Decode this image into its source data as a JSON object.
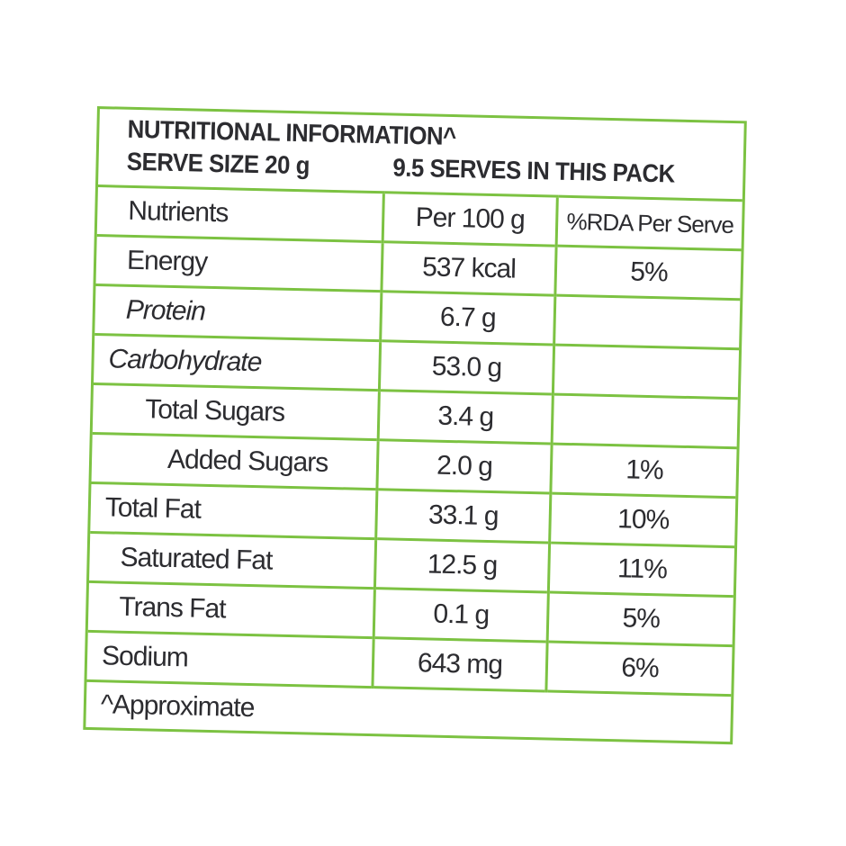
{
  "header": {
    "title": "NUTRITIONAL INFORMATION^",
    "serve_size": "SERVE SIZE 20 g",
    "serves_per_pack": "9.5 SERVES IN THIS PACK"
  },
  "table": {
    "columns": [
      "Nutrients",
      "Per 100 g",
      "%RDA Per Serve"
    ],
    "rows": [
      {
        "nutrient": "Energy",
        "per100": "537 kcal",
        "rda": "5%"
      },
      {
        "nutrient": "Protein",
        "per100": "6.7 g",
        "rda": ""
      },
      {
        "nutrient": "Carbohydrate",
        "per100": "53.0 g",
        "rda": ""
      },
      {
        "nutrient": "Total Sugars",
        "per100": "3.4 g",
        "rda": ""
      },
      {
        "nutrient": "Added Sugars",
        "per100": "2.0 g",
        "rda": "1%"
      },
      {
        "nutrient": "Total Fat",
        "per100": "33.1 g",
        "rda": "10%"
      },
      {
        "nutrient": "Saturated Fat",
        "per100": "12.5 g",
        "rda": "11%"
      },
      {
        "nutrient": "Trans Fat",
        "per100": "0.1 g",
        "rda": "5%"
      },
      {
        "nutrient": "Sodium",
        "per100": "643 mg",
        "rda": "6%"
      }
    ],
    "footnote": "^Approximate"
  },
  "colors": {
    "border": "#7cc242",
    "text": "#2c2c30"
  }
}
